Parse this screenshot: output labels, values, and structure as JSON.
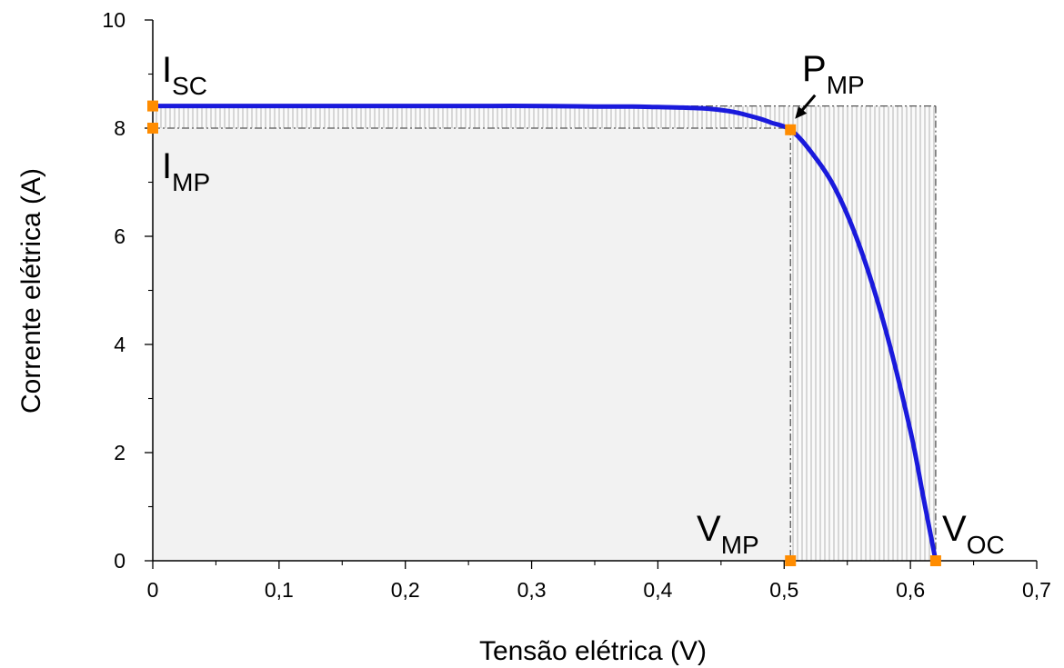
{
  "chart_data": {
    "type": "line",
    "title": "",
    "xlabel": "Tensão elétrica (V)",
    "ylabel": "Corrente elétrica (A)",
    "xlim": [
      0,
      0.7
    ],
    "ylim": [
      0,
      10
    ],
    "x_ticks": [
      0,
      0.1,
      0.2,
      0.3,
      0.4,
      0.5,
      0.6,
      0.7
    ],
    "x_tick_labels": [
      "0",
      "0,1",
      "0,2",
      "0,3",
      "0,4",
      "0,5",
      "0,6",
      "0,7"
    ],
    "y_ticks": [
      0,
      2,
      4,
      6,
      8,
      10
    ],
    "y_tick_labels": [
      "0",
      "2",
      "4",
      "6",
      "8",
      "10"
    ],
    "grid": false,
    "colors": {
      "curve": "#1a1adc",
      "marker": "#ff8c00",
      "mp_area": "#f2f2f2",
      "hatch": "#b4b4b4",
      "guide": "#555555"
    },
    "series": [
      {
        "x": [
          0,
          0.05,
          0.1,
          0.15,
          0.2,
          0.25,
          0.3,
          0.35,
          0.38,
          0.4,
          0.42,
          0.44,
          0.46,
          0.48,
          0.49,
          0.505,
          0.52,
          0.54,
          0.56,
          0.58,
          0.6,
          0.61,
          0.62
        ],
        "y": [
          8.41,
          8.41,
          8.41,
          8.41,
          8.41,
          8.41,
          8.41,
          8.4,
          8.4,
          8.39,
          8.38,
          8.36,
          8.3,
          8.18,
          8.1,
          7.97,
          7.6,
          6.9,
          5.8,
          4.3,
          2.4,
          1.2,
          0
        ]
      }
    ],
    "points": {
      "isc": {
        "x": 0,
        "y": 8.41
      },
      "imp": {
        "x": 0,
        "y": 8.0
      },
      "pmp": {
        "x": 0.505,
        "y": 7.97
      },
      "vmp": {
        "x": 0.505,
        "y": 0
      },
      "voc": {
        "x": 0.62,
        "y": 0
      }
    },
    "annotations": {
      "isc": {
        "main": "I",
        "sub": "SC"
      },
      "imp": {
        "main": "I",
        "sub": "MP"
      },
      "pmp": {
        "main": "P",
        "sub": "MP"
      },
      "vmp": {
        "main": "V",
        "sub": "MP"
      },
      "voc": {
        "main": "V",
        "sub": "OC"
      }
    }
  }
}
